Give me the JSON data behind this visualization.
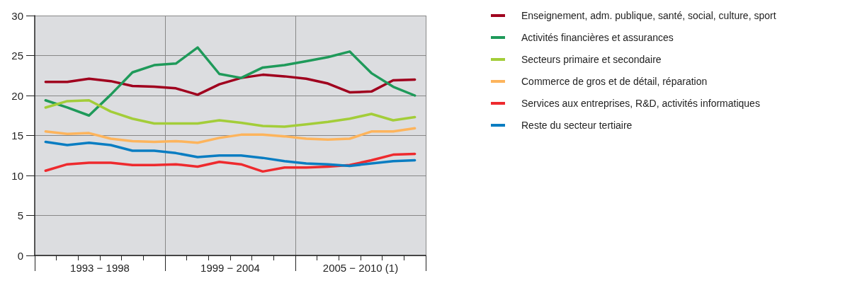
{
  "chart_data": {
    "type": "line",
    "categories": [
      null,
      null,
      null,
      null,
      null,
      null,
      null,
      null,
      null,
      null,
      null,
      null,
      null,
      null,
      null,
      null,
      null,
      null
    ],
    "annotations": [
      "1993 − 1998",
      "1999 − 2004",
      "2005 − 2010 (1)"
    ],
    "ylim": [
      0,
      30
    ],
    "yticks": [
      0,
      5,
      10,
      15,
      20,
      25,
      30
    ],
    "grid": true,
    "legend": "top right",
    "marker": "none",
    "line_style": "solid",
    "series": [
      {
        "name": "Enseignement, adm. publique, santé, social, culture, sport",
        "color": "#a0001e",
        "values": [
          21.7,
          21.7,
          22.1,
          21.8,
          21.2,
          21.1,
          20.9,
          20.1,
          21.4,
          22.2,
          22.6,
          22.4,
          22.1,
          21.5,
          20.4,
          20.5,
          21.9,
          22.0
        ]
      },
      {
        "name": "Activités financières et assurances",
        "color": "#1f9a5a",
        "values": [
          19.4,
          18.5,
          17.5,
          20.1,
          22.9,
          23.8,
          24.0,
          26.0,
          22.7,
          22.2,
          23.5,
          23.8,
          24.3,
          24.8,
          25.5,
          22.8,
          21.1,
          20.0
        ]
      },
      {
        "name": "Secteurs primaire et secondaire",
        "color": "#a3cd39",
        "values": [
          18.5,
          19.3,
          19.4,
          18.0,
          17.1,
          16.5,
          16.5,
          16.5,
          16.9,
          16.6,
          16.2,
          16.1,
          16.4,
          16.7,
          17.1,
          17.7,
          16.9,
          17.3
        ]
      },
      {
        "name": "Commerce de gros et de détail, réparation",
        "color": "#fdb45c",
        "values": [
          15.5,
          15.2,
          15.3,
          14.6,
          14.3,
          14.2,
          14.3,
          14.1,
          14.7,
          15.1,
          15.1,
          14.9,
          14.6,
          14.5,
          14.6,
          15.5,
          15.5,
          15.9
        ]
      },
      {
        "name": "Services aux entreprises, R&D, activités informatiques",
        "color": "#ee2a2e",
        "values": [
          10.6,
          11.4,
          11.6,
          11.6,
          11.3,
          11.3,
          11.4,
          11.1,
          11.7,
          11.4,
          10.5,
          11.0,
          11.0,
          11.1,
          11.3,
          11.9,
          12.6,
          12.7
        ]
      },
      {
        "name": "Reste du secteur tertiaire",
        "color": "#0a7dc2",
        "values": [
          14.2,
          13.8,
          14.1,
          13.8,
          13.1,
          13.1,
          12.8,
          12.3,
          12.5,
          12.5,
          12.2,
          11.8,
          11.5,
          11.4,
          11.2,
          11.5,
          11.8,
          11.9
        ]
      }
    ]
  }
}
